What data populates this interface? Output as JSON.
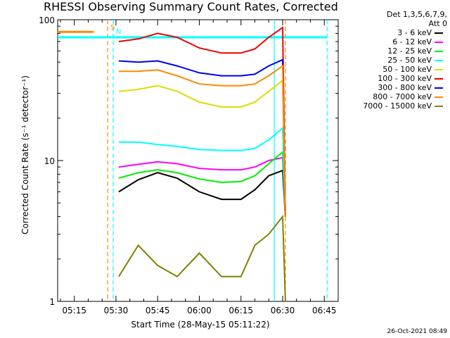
{
  "chart_data": {
    "type": "line",
    "title": "RHESSI Observing Summary Count Rates, Corrected",
    "xlabel": "Start Time (28-May-15 05:11:22)",
    "ylabel": "Corrected Count Rate (s⁻¹ detector⁻¹)",
    "yscale": "log",
    "ylim": [
      1,
      100
    ],
    "xlim": [
      "05:09",
      "06:50"
    ],
    "x_ticks": [
      "05:15",
      "05:30",
      "05:45",
      "06:00",
      "06:15",
      "06:30",
      "06:45"
    ],
    "y_ticks": [
      "1",
      "10",
      "100"
    ],
    "legend_header": [
      "Det 1,3,5,6,7,9,",
      "Att 0"
    ],
    "legend_position": "right",
    "grid": false,
    "series": [
      {
        "name": "3 - 6 keV",
        "color": "#000000",
        "x": [
          "05:31",
          "05:38",
          "05:45",
          "05:52",
          "06:00",
          "06:08",
          "06:15",
          "06:20",
          "06:25",
          "06:30",
          "06:31"
        ],
        "y": [
          6.0,
          7.3,
          8.2,
          7.5,
          6.0,
          5.3,
          5.3,
          6.2,
          7.8,
          8.5,
          4
        ]
      },
      {
        "name": "6 - 12 keV",
        "color": "#ff00ff",
        "x": [
          "05:31",
          "05:38",
          "05:45",
          "05:52",
          "06:00",
          "06:08",
          "06:15",
          "06:20",
          "06:25",
          "06:30",
          "06:31"
        ],
        "y": [
          9.0,
          9.4,
          9.8,
          9.5,
          8.8,
          8.6,
          8.6,
          9.0,
          10.0,
          10.5,
          4
        ]
      },
      {
        "name": "12 - 25 keV",
        "color": "#00ee00",
        "x": [
          "05:31",
          "05:38",
          "05:45",
          "05:52",
          "06:00",
          "06:08",
          "06:15",
          "06:20",
          "06:25",
          "06:30",
          "06:31"
        ],
        "y": [
          7.5,
          8.2,
          8.6,
          8.2,
          7.4,
          7.0,
          7.1,
          7.8,
          9.5,
          11.5,
          4
        ]
      },
      {
        "name": "25 - 50 keV",
        "color": "#00ffff",
        "x": [
          "05:31",
          "05:38",
          "05:45",
          "05:52",
          "06:00",
          "06:08",
          "06:15",
          "06:20",
          "06:25",
          "06:30",
          "06:31"
        ],
        "y": [
          13.5,
          13.5,
          13.0,
          12.6,
          12.0,
          11.8,
          11.8,
          12.2,
          14.0,
          17.0,
          4
        ]
      },
      {
        "name": "50 - 100 keV",
        "color": "#dddd00",
        "x": [
          "05:31",
          "05:38",
          "05:45",
          "05:52",
          "06:00",
          "06:08",
          "06:15",
          "06:20",
          "06:25",
          "06:30",
          "06:31"
        ],
        "y": [
          31,
          32,
          34,
          31,
          26,
          24,
          24,
          26,
          31,
          37,
          4
        ]
      },
      {
        "name": "100 - 300 keV",
        "color": "#ee0000",
        "x": [
          "05:31",
          "05:38",
          "05:45",
          "05:52",
          "06:00",
          "06:08",
          "06:15",
          "06:20",
          "06:25",
          "06:30",
          "06:31"
        ],
        "y": [
          70,
          73,
          80,
          75,
          63,
          58,
          58,
          62,
          75,
          88,
          4
        ]
      },
      {
        "name": "300 - 800 keV",
        "color": "#0000ee",
        "x": [
          "05:31",
          "05:38",
          "05:45",
          "05:52",
          "06:00",
          "06:08",
          "06:15",
          "06:20",
          "06:25",
          "06:30",
          "06:31"
        ],
        "y": [
          51,
          50,
          51,
          47,
          42,
          40,
          40,
          41,
          47,
          52,
          4
        ]
      },
      {
        "name": "800 - 7000 keV",
        "color": "#ff8800",
        "x": [
          "05:31",
          "05:38",
          "05:45",
          "05:52",
          "06:00",
          "06:08",
          "06:15",
          "06:20",
          "06:25",
          "06:30",
          "06:31"
        ],
        "y": [
          43,
          43,
          44,
          40,
          35,
          34,
          34,
          35,
          40,
          47,
          4
        ]
      },
      {
        "name": "7000 - 15000 keV",
        "color": "#808000",
        "x": [
          "05:31",
          "05:38",
          "05:45",
          "05:52",
          "06:00",
          "06:08",
          "06:15",
          "06:20",
          "06:25",
          "06:30",
          "06:31"
        ],
        "y": [
          1.5,
          2.5,
          1.8,
          1.5,
          2.2,
          1.5,
          1.5,
          2.5,
          3.0,
          4.0,
          1
        ]
      }
    ],
    "annotations": [
      {
        "label": "S",
        "color": "#ff8800",
        "x": "05:27"
      },
      {
        "label": "N",
        "color": "#00ffff",
        "x": "05:29"
      }
    ],
    "vertical_markers": [
      {
        "x": "05:27",
        "color": "#ff8800",
        "style": "dashed"
      },
      {
        "x": "05:29",
        "color": "#00ffff",
        "style": "dashed"
      },
      {
        "x": "06:27",
        "color": "#00ffff",
        "style": "solid"
      },
      {
        "x": "06:31",
        "color": "#ff8800",
        "style": "dashed"
      },
      {
        "x": "06:46",
        "color": "#00ffff",
        "style": "dashed"
      }
    ],
    "horizontal_lines": [
      {
        "color": "#00ffff",
        "y": 75,
        "x_from": "05:09",
        "x_to": "06:46"
      },
      {
        "color": "#ff8800",
        "y": 82,
        "x_from": "05:09",
        "x_to": "05:22"
      }
    ]
  },
  "timestamp": "26-Oct-2021 08:49"
}
